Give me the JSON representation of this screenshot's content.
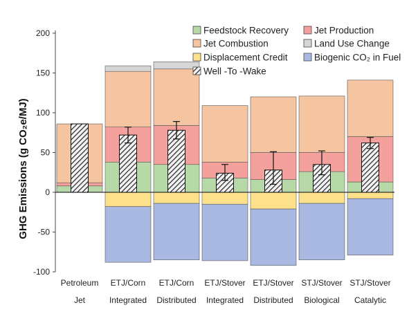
{
  "chart_data": {
    "type": "bar",
    "stacked": true,
    "ylabel": "GHG Emissions (g CO₂e/MJ)",
    "ylim": [
      -100,
      200
    ],
    "yticks": [
      200,
      150,
      100,
      50,
      0,
      -50,
      -100
    ],
    "grid": false,
    "legend_position": "top-right",
    "categories": [
      [
        "Petroleum",
        "Jet"
      ],
      [
        "ETJ/Corn",
        "Integrated"
      ],
      [
        "ETJ/Corn",
        "Distributed"
      ],
      [
        "ETJ/Stover",
        "Integrated"
      ],
      [
        "ETJ/Stover",
        "Distributed"
      ],
      [
        "STJ/Stover",
        "Biological"
      ],
      [
        "STJ/Stover",
        "Catalytic"
      ]
    ],
    "series": [
      {
        "name": "Feedstock Recovery",
        "color": "#b7d9a8",
        "values": [
          8,
          38,
          35,
          18,
          16,
          26,
          13
        ]
      },
      {
        "name": "Jet Production",
        "color": "#f4a09c",
        "values": [
          4,
          44,
          49,
          20,
          34,
          24,
          57
        ]
      },
      {
        "name": "Jet Combustion",
        "color": "#f5c4a0",
        "values": [
          74,
          70,
          71,
          71,
          70,
          71,
          71
        ]
      },
      {
        "name": "Land Use Change",
        "color": "#d6d6d6",
        "values": [
          0,
          7,
          9,
          0,
          0,
          0,
          0
        ]
      },
      {
        "name": "Displacement Credit",
        "color": "#fde18a",
        "values": [
          0,
          -18,
          -14,
          -15,
          -21,
          -14,
          -8
        ]
      },
      {
        "name": "Biogenic CO₂ in Fuel",
        "color": "#a9b9e2",
        "values": [
          0,
          -70,
          -71,
          -71,
          -71,
          -71,
          -71
        ]
      }
    ],
    "net_series": {
      "name": "Well -To -Wake",
      "values": [
        86,
        72,
        78,
        24,
        28,
        35,
        62
      ],
      "error_low": [
        86,
        62,
        67,
        15,
        10,
        22,
        55
      ],
      "error_high": [
        86,
        82,
        89,
        35,
        51,
        52,
        69
      ]
    },
    "legend_order": [
      "Feedstock Recovery",
      "Jet Production",
      "Jet Combustion",
      "Land Use Change",
      "Displacement Credit",
      "Biogenic CO₂ in Fuel",
      "Well -To -Wake"
    ]
  }
}
